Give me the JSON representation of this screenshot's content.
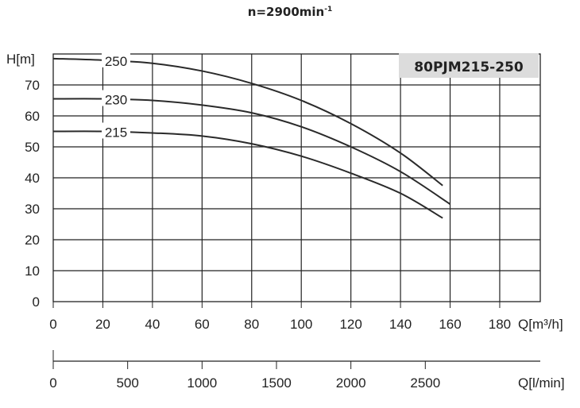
{
  "title": {
    "main": "n=2900min",
    "sup": "-1"
  },
  "model_label": "80PJM215-250",
  "colors": {
    "grid": "#222222",
    "curve": "#2a2a2a",
    "label_bg": "#dcdcdc",
    "text": "#222222"
  },
  "chart_data": {
    "type": "line",
    "title": "n=2900min-1",
    "annotation": "80PJM215-250",
    "xlabel": "Q[m3/h]",
    "ylabel": "H[m]",
    "secondary_xlabel": "Q[l/min]",
    "xlim": [
      0,
      195
    ],
    "ylim": [
      0,
      80
    ],
    "x_ticks": [
      0,
      20,
      40,
      60,
      80,
      100,
      120,
      140,
      160,
      180
    ],
    "y_ticks": [
      0,
      10,
      20,
      30,
      40,
      50,
      60,
      70
    ],
    "secondary_x_ticks": [
      0,
      500,
      1000,
      1500,
      2000,
      2500
    ],
    "grid": true,
    "series": [
      {
        "name": "250",
        "x": [
          0,
          20,
          40,
          60,
          80,
          100,
          120,
          140,
          157
        ],
        "y": [
          78.5,
          78,
          77,
          74.5,
          70.5,
          65,
          57.5,
          48,
          37.5
        ]
      },
      {
        "name": "230",
        "x": [
          0,
          20,
          40,
          60,
          80,
          100,
          120,
          140,
          160
        ],
        "y": [
          65.5,
          65.5,
          65,
          63.5,
          61,
          56.5,
          50,
          42,
          31.5
        ]
      },
      {
        "name": "215",
        "x": [
          0,
          20,
          40,
          60,
          80,
          100,
          120,
          140,
          157
        ],
        "y": [
          55,
          55,
          54.5,
          53.5,
          51,
          47,
          41.5,
          35,
          27
        ]
      }
    ]
  },
  "axis_labels": {
    "y": "H[m]",
    "x_top": "Q[m³/h]",
    "x_bottom": "Q[l/min]"
  },
  "y_tick_labels": [
    "0",
    "10",
    "20",
    "30",
    "40",
    "50",
    "60",
    "70"
  ],
  "x_tick_labels": [
    "0",
    "20",
    "40",
    "60",
    "80",
    "100",
    "120",
    "140",
    "160",
    "180"
  ],
  "x2_tick_labels": [
    "0",
    "500",
    "1000",
    "1500",
    "2000",
    "2500"
  ],
  "curve_labels": [
    "250",
    "230",
    "215"
  ]
}
